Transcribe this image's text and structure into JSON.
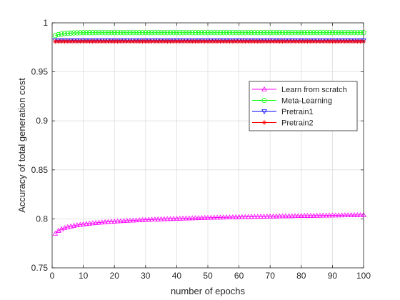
{
  "chart_data": {
    "type": "line",
    "xlabel": "number of epochs",
    "ylabel": "Accuracy of total generation cost",
    "xlim": [
      0,
      100
    ],
    "ylim": [
      0.75,
      1.0
    ],
    "xticks": [
      "0",
      "10",
      "20",
      "30",
      "40",
      "50",
      "60",
      "70",
      "80",
      "90",
      "100"
    ],
    "yticks": [
      "0.75",
      "0.8",
      "0.85",
      "0.9",
      "0.95",
      "1"
    ],
    "grid": true,
    "legend_position": "upper-right",
    "series": [
      {
        "name": "Learn from scratch",
        "color": "#ff00ff",
        "marker": "triangle-up",
        "curve": {
          "type": "log",
          "start": 0.785,
          "end": 0.804
        }
      },
      {
        "name": "Meta-Learning",
        "color": "#00ff00",
        "marker": "circle",
        "curve": {
          "type": "saturating",
          "start": 0.987,
          "end": 0.99
        }
      },
      {
        "name": "Pretrain1",
        "color": "#0000ff",
        "marker": "triangle-down",
        "curve": {
          "type": "flat",
          "start": 0.982,
          "end": 0.982
        }
      },
      {
        "name": "Pretrain2",
        "color": "#ff0000",
        "marker": "asterisk",
        "curve": {
          "type": "flat",
          "start": 0.981,
          "end": 0.981
        }
      }
    ]
  }
}
